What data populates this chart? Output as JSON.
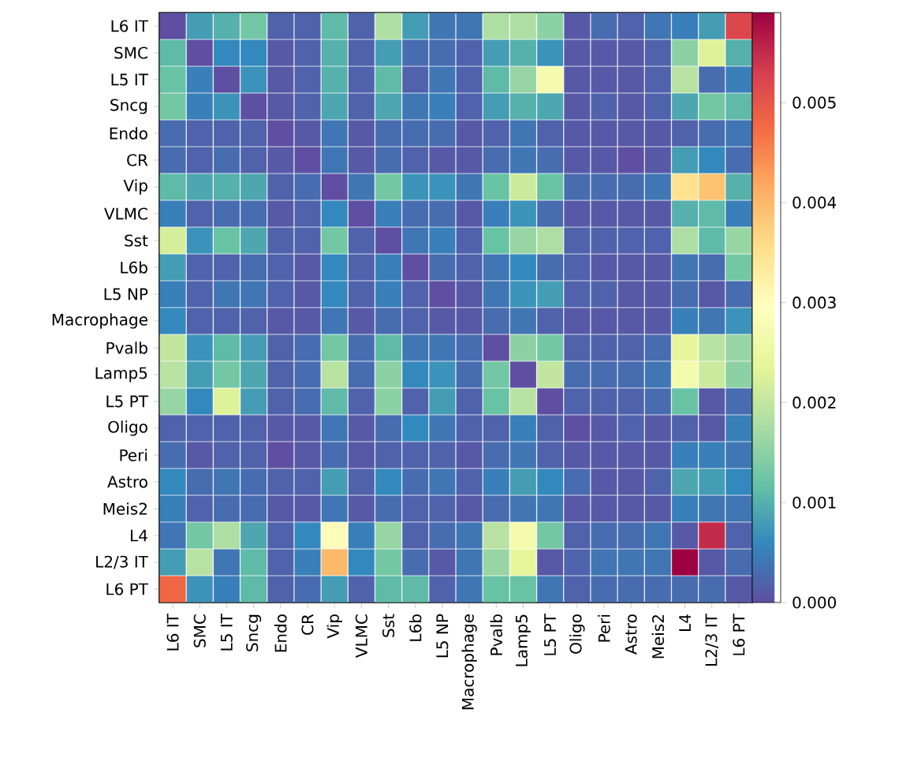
{
  "chart_data": {
    "type": "heatmap",
    "categories": [
      "L6 IT",
      "SMC",
      "L5 IT",
      "Sncg",
      "Endo",
      "CR",
      "Vip",
      "VLMC",
      "Sst",
      "L6b",
      "L5 NP",
      "Macrophage",
      "Pvalb",
      "Lamp5",
      "L5 PT",
      "Oligo",
      "Peri",
      "Astro",
      "Meis2",
      "L4",
      "L2/3 IT",
      "L6 PT"
    ],
    "y_categories": [
      "L6 IT",
      "SMC",
      "L5 IT",
      "Sncg",
      "Endo",
      "CR",
      "Vip",
      "VLMC",
      "Sst",
      "L6b",
      "L5 NP",
      "Macrophage",
      "Pvalb",
      "Lamp5",
      "L5 PT",
      "Oligo",
      "Peri",
      "Astro",
      "Meis2",
      "L4",
      "L2/3 IT",
      "L6 PT"
    ],
    "cells": [
      [
        0.0,
        0.0008,
        0.001,
        0.0013,
        0.0002,
        0.0002,
        0.0011,
        0.0002,
        0.0018,
        0.0008,
        0.0004,
        0.0004,
        0.0018,
        0.0018,
        0.0015,
        0.0001,
        0.0003,
        0.0002,
        0.0004,
        0.0005,
        0.0008,
        0.0052
      ],
      [
        0.0011,
        0.0,
        0.0006,
        0.0006,
        0.0001,
        0.0002,
        0.001,
        0.0002,
        0.0008,
        0.0003,
        0.0003,
        0.0002,
        0.0008,
        0.001,
        0.0007,
        0.0001,
        0.0001,
        0.0001,
        0.0002,
        0.0015,
        0.0023,
        0.001
      ],
      [
        0.0012,
        0.0005,
        0.0,
        0.0007,
        0.0001,
        0.0002,
        0.001,
        0.0002,
        0.0011,
        0.0002,
        0.0004,
        0.0002,
        0.0011,
        0.0016,
        0.0027,
        0.0001,
        0.0001,
        0.0001,
        0.0002,
        0.0019,
        0.0003,
        0.0005
      ],
      [
        0.0013,
        0.0005,
        0.0007,
        0.0,
        0.0001,
        0.0002,
        0.0009,
        0.0002,
        0.0009,
        0.0004,
        0.0005,
        0.0002,
        0.0008,
        0.001,
        0.0009,
        0.0001,
        0.0002,
        0.0001,
        0.0002,
        0.0009,
        0.0013,
        0.0011
      ],
      [
        0.0003,
        0.0002,
        0.0002,
        0.0002,
        0.0,
        0.0001,
        0.0004,
        0.0001,
        0.0003,
        0.0003,
        0.0003,
        0.0001,
        0.0002,
        0.0004,
        0.0002,
        0.0001,
        0.0001,
        0.0001,
        0.0001,
        0.0002,
        0.0003,
        0.0004
      ],
      [
        0.0003,
        0.0002,
        0.0003,
        0.0002,
        0.0001,
        0.0,
        0.0004,
        0.0001,
        0.0003,
        0.0002,
        0.0001,
        0.0001,
        0.0003,
        0.0004,
        0.0003,
        0.0001,
        0.0001,
        0.0,
        0.0001,
        0.0008,
        0.0006,
        0.0003
      ],
      [
        0.0011,
        0.0009,
        0.001,
        0.0009,
        0.0002,
        0.0003,
        0.0,
        0.0004,
        0.0013,
        0.0007,
        0.0007,
        0.0004,
        0.0012,
        0.0021,
        0.0012,
        0.0003,
        0.0003,
        0.0003,
        0.0004,
        0.0035,
        0.0039,
        0.001
      ],
      [
        0.0005,
        0.0002,
        0.0003,
        0.0003,
        0.0001,
        0.0002,
        0.0006,
        0.0,
        0.0005,
        0.0003,
        0.0003,
        0.0001,
        0.0005,
        0.0007,
        0.0003,
        0.0001,
        0.0001,
        0.0001,
        0.0001,
        0.001,
        0.0011,
        0.0005
      ],
      [
        0.0022,
        0.0007,
        0.0012,
        0.0009,
        0.0002,
        0.0002,
        0.0013,
        0.0002,
        0.0,
        0.0004,
        0.0005,
        0.0002,
        0.0012,
        0.0016,
        0.0018,
        0.0002,
        0.0002,
        0.0002,
        0.0002,
        0.0018,
        0.0011,
        0.0016
      ],
      [
        0.0008,
        0.0002,
        0.0002,
        0.0003,
        0.0002,
        0.0001,
        0.0006,
        0.0002,
        0.0005,
        0.0,
        0.0003,
        0.0002,
        0.0004,
        0.0006,
        0.0003,
        0.0002,
        0.0001,
        0.0001,
        0.0001,
        0.0004,
        0.0003,
        0.0013
      ],
      [
        0.0005,
        0.0002,
        0.0004,
        0.0004,
        0.0002,
        0.0001,
        0.0006,
        0.0002,
        0.0005,
        0.0002,
        0.0,
        0.0001,
        0.0004,
        0.0007,
        0.0008,
        0.0002,
        0.0002,
        0.0001,
        0.0001,
        0.0003,
        0.0001,
        0.0003
      ],
      [
        0.0006,
        0.0002,
        0.0002,
        0.0002,
        0.0001,
        0.0001,
        0.0004,
        0.0001,
        0.0003,
        0.0002,
        0.0001,
        0.0001,
        0.0003,
        0.0004,
        0.0002,
        0.0001,
        0.0001,
        0.0001,
        0.0001,
        0.0005,
        0.0004,
        0.0007
      ],
      [
        0.002,
        0.0007,
        0.0011,
        0.0008,
        0.0002,
        0.0003,
        0.0013,
        0.0003,
        0.0011,
        0.0004,
        0.0004,
        0.0003,
        0.0,
        0.0015,
        0.0013,
        0.0002,
        0.0002,
        0.0002,
        0.0003,
        0.0024,
        0.0019,
        0.0016
      ],
      [
        0.0019,
        0.0008,
        0.0013,
        0.0009,
        0.0002,
        0.0003,
        0.0019,
        0.0003,
        0.0015,
        0.0006,
        0.0007,
        0.0003,
        0.0013,
        0.0,
        0.002,
        0.0003,
        0.0003,
        0.0003,
        0.0004,
        0.0027,
        0.0021,
        0.0015
      ],
      [
        0.0016,
        0.0006,
        0.0023,
        0.0008,
        0.0002,
        0.0003,
        0.0011,
        0.0002,
        0.0015,
        0.0002,
        0.0008,
        0.0002,
        0.0012,
        0.0019,
        0.0,
        0.0002,
        0.0002,
        0.0002,
        0.0003,
        0.0012,
        0.0001,
        0.0003
      ],
      [
        0.0002,
        0.0002,
        0.0002,
        0.0002,
        0.0001,
        0.0001,
        0.0004,
        0.0001,
        0.0003,
        0.0006,
        0.0004,
        0.0002,
        0.0002,
        0.0005,
        0.0002,
        0.0,
        0.0001,
        0.0002,
        0.0001,
        0.0002,
        0.0001,
        0.0005
      ],
      [
        0.0003,
        0.0001,
        0.0002,
        0.0002,
        0.0,
        0.0001,
        0.0003,
        0.0001,
        0.0002,
        0.0002,
        0.0002,
        0.0001,
        0.0003,
        0.0004,
        0.0002,
        0.0001,
        0.0001,
        0.0001,
        0.0001,
        0.0005,
        0.0005,
        0.0004
      ],
      [
        0.0006,
        0.0003,
        0.0004,
        0.0003,
        0.0002,
        0.0002,
        0.0008,
        0.0002,
        0.0006,
        0.0003,
        0.0004,
        0.0002,
        0.0005,
        0.0008,
        0.0006,
        0.0003,
        0.0001,
        0.0001,
        0.0002,
        0.0009,
        0.0008,
        0.0006
      ],
      [
        0.0005,
        0.0002,
        0.0003,
        0.0003,
        0.0001,
        0.0001,
        0.0004,
        0.0001,
        0.0003,
        0.0002,
        0.0002,
        0.0001,
        0.0003,
        0.0004,
        0.0004,
        0.0001,
        0.0001,
        0.0001,
        0.0001,
        0.0005,
        0.0004,
        0.0004
      ],
      [
        0.0004,
        0.0013,
        0.0018,
        0.0009,
        0.0002,
        0.0006,
        0.003,
        0.0005,
        0.0016,
        0.0002,
        0.0003,
        0.0004,
        0.0019,
        0.0027,
        0.0013,
        0.0002,
        0.0003,
        0.0003,
        0.0004,
        0.0001,
        0.0055,
        0.0002
      ],
      [
        0.0008,
        0.0019,
        0.0004,
        0.0011,
        0.0002,
        0.0005,
        0.004,
        0.0006,
        0.0013,
        0.0003,
        0.0001,
        0.0004,
        0.0016,
        0.0024,
        0.0001,
        0.0002,
        0.0004,
        0.0004,
        0.0004,
        0.0059,
        0.0001,
        0.0003
      ],
      [
        0.0048,
        0.0007,
        0.0005,
        0.0011,
        0.0002,
        0.0003,
        0.0008,
        0.0002,
        0.0011,
        0.0011,
        0.0002,
        0.0004,
        0.0012,
        0.0012,
        0.0004,
        0.0002,
        0.0003,
        0.0003,
        0.0003,
        0.0003,
        0.0003,
        0.0001
      ]
    ],
    "clim": [
      0,
      0.0059
    ],
    "cticks": [
      {
        "value": 0,
        "label": "0.000"
      },
      {
        "value": 0.001,
        "label": "0.001"
      },
      {
        "value": 0.002,
        "label": "0.002"
      },
      {
        "value": 0.003,
        "label": "0.003"
      },
      {
        "value": 0.004,
        "label": "0.004"
      },
      {
        "value": 0.005,
        "label": "0.005"
      }
    ]
  }
}
